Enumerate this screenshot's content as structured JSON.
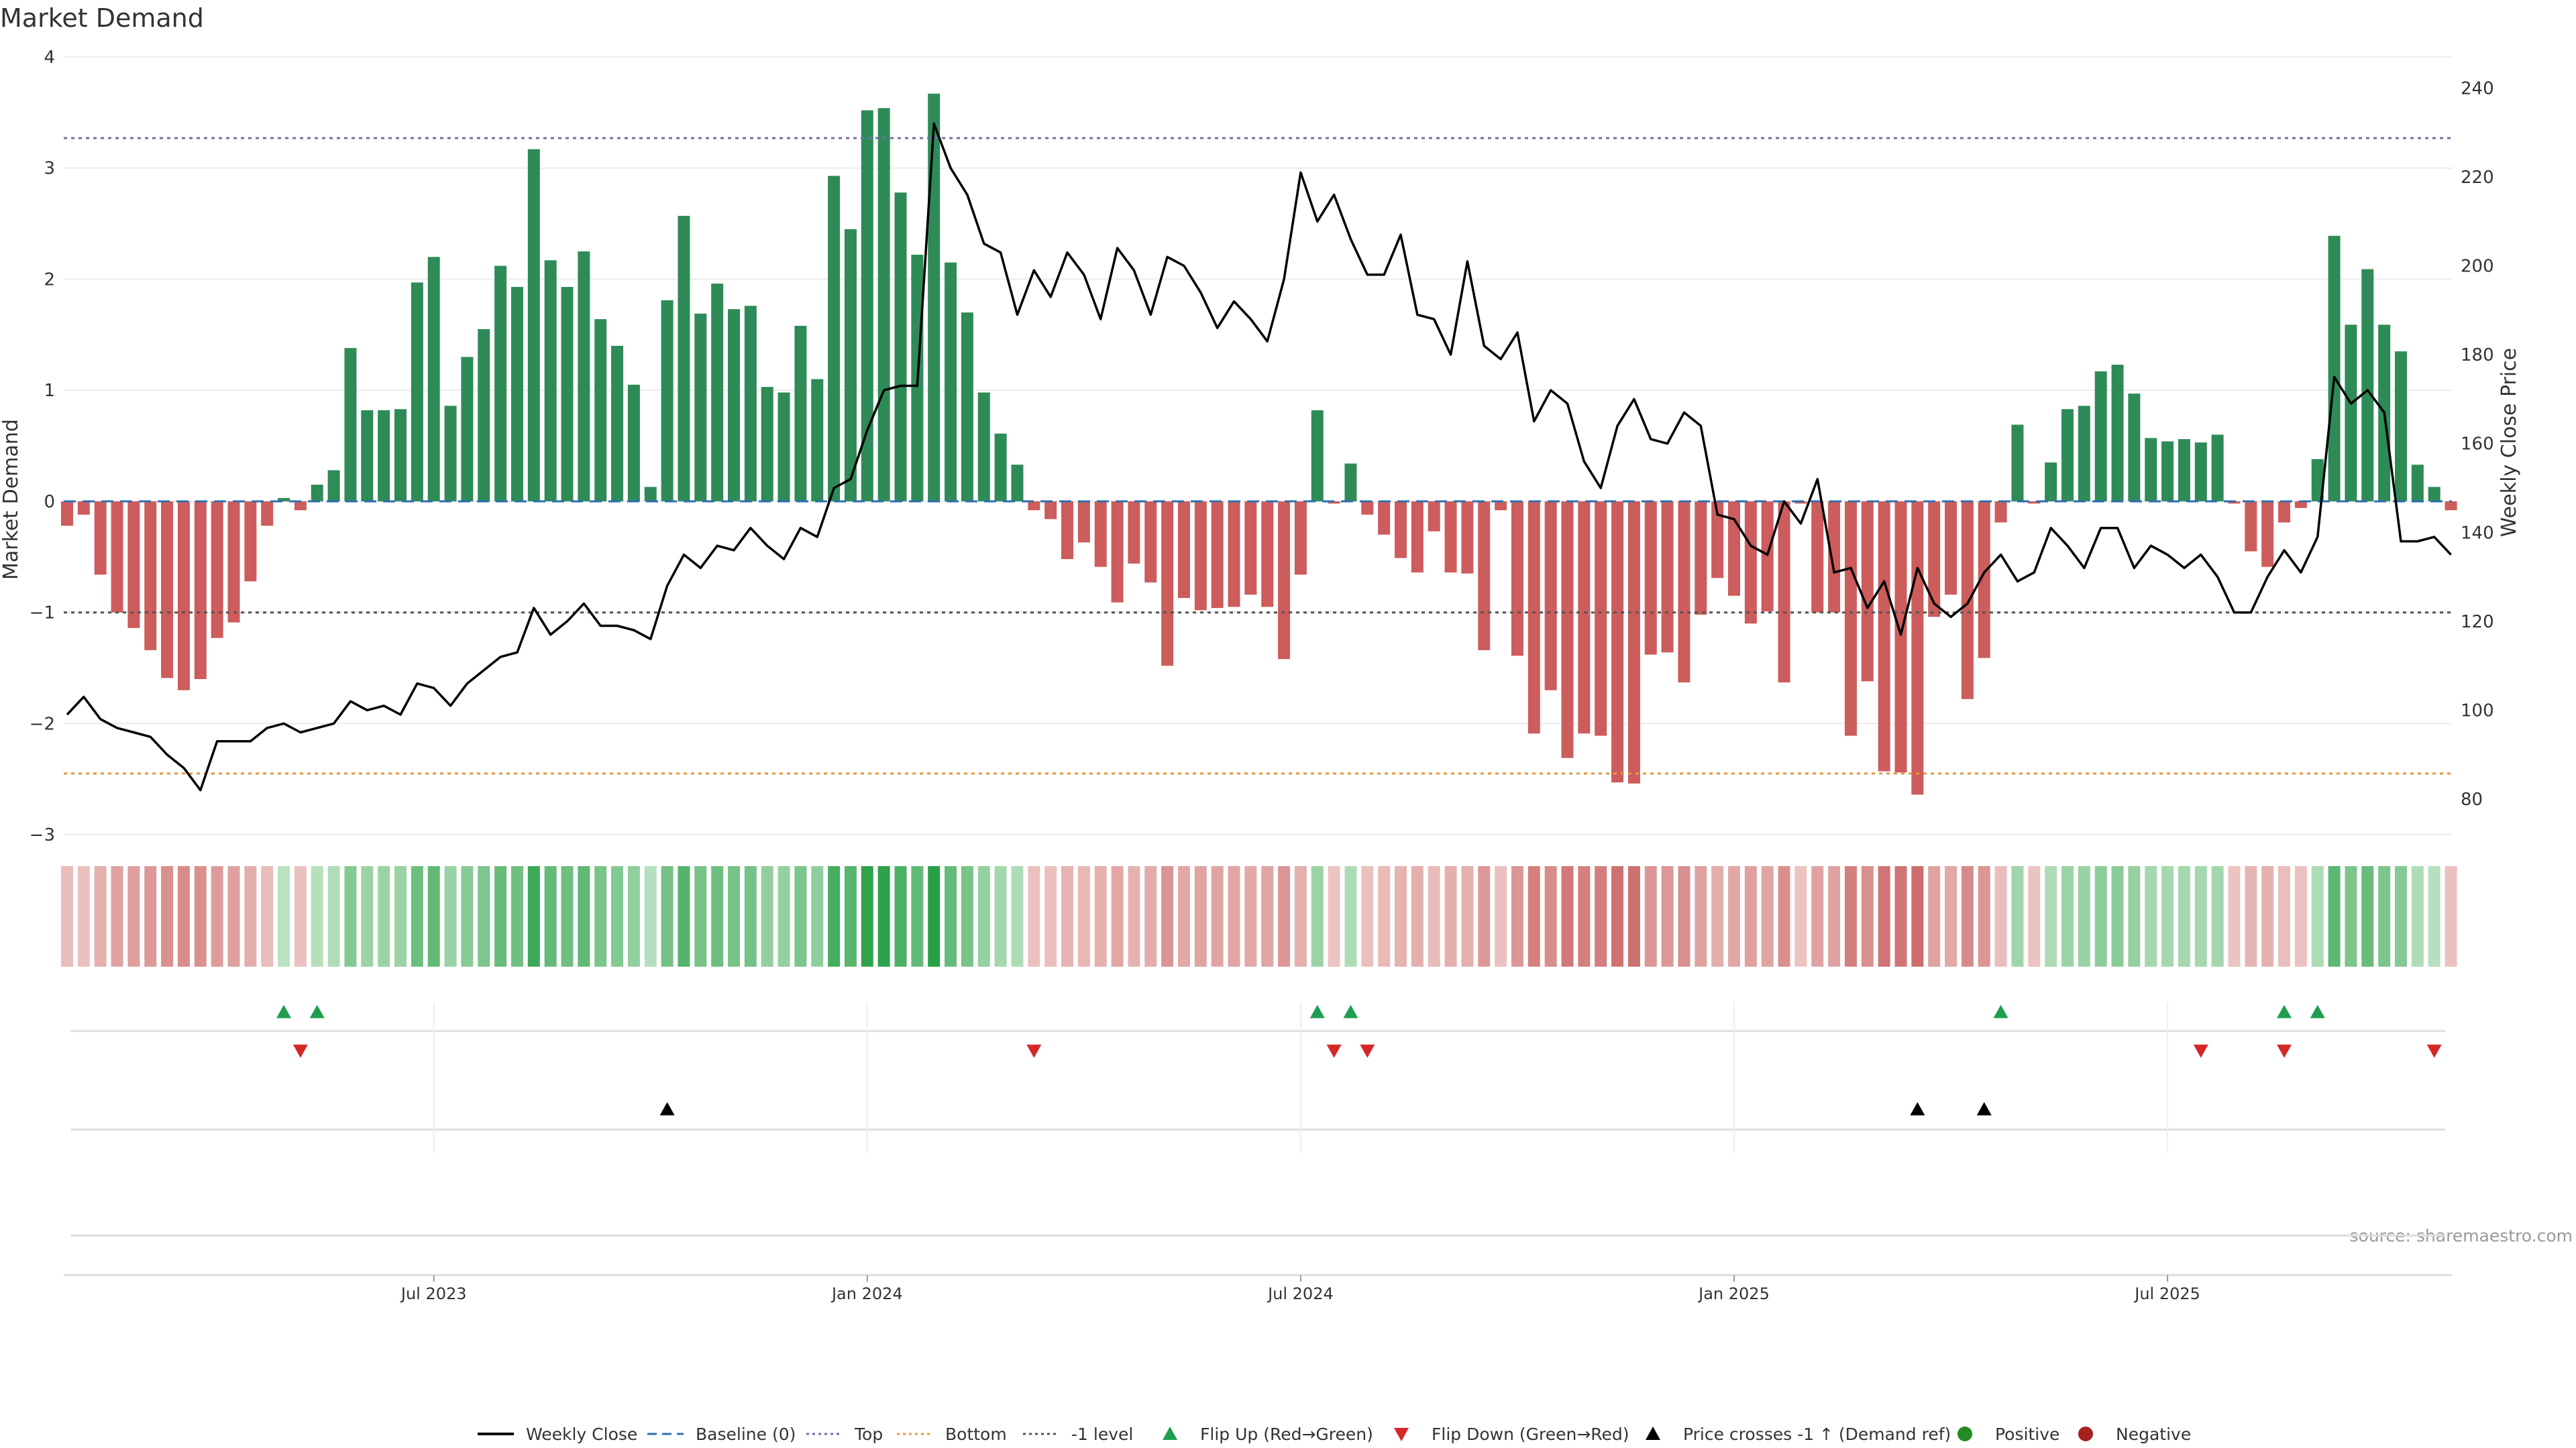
{
  "chart_data": {
    "type": "bar+line",
    "title": "Market Demand",
    "ylabel": "Market Demand",
    "y2label": "Weekly Close Price",
    "source": "source: sharemaestro.com",
    "ylim": [
      -3,
      4
    ],
    "y2lim": [
      72,
      247
    ],
    "yticks": [
      "4",
      "3",
      "2",
      "1",
      "0",
      "−1",
      "−2",
      "−3"
    ],
    "yticks_values": [
      4,
      3,
      2,
      1,
      0,
      -1,
      -2,
      -3
    ],
    "y2ticks": [
      "240",
      "220",
      "200",
      "180",
      "160",
      "140",
      "120",
      "100",
      "80"
    ],
    "y2ticks_values": [
      240,
      220,
      200,
      180,
      160,
      140,
      120,
      100,
      80
    ],
    "xticks": [
      {
        "label": "Jul 2023",
        "week": 22
      },
      {
        "label": "Jan 2024",
        "week": 48
      },
      {
        "label": "Jul 2024",
        "week": 74
      },
      {
        "label": "Jan 2025",
        "week": 100
      },
      {
        "label": "Jul 2025",
        "week": 126
      }
    ],
    "levels": {
      "top": 3.27,
      "bottom": -2.45,
      "minus_one": -1.0,
      "baseline": 0
    },
    "colors": {
      "positive": "#2e8b57",
      "negative": "#cd5c5c",
      "price": "#000000",
      "top": "#6e6ea8",
      "bottom": "#e0983a",
      "minus_one": "#555555",
      "baseline": "#2f6fb0",
      "flip_up": "#1e9e4e",
      "flip_down": "#d62728"
    },
    "demand": [
      -0.22,
      -0.12,
      -0.66,
      -1.0,
      -1.14,
      -1.34,
      -1.59,
      -1.7,
      -1.6,
      -1.23,
      -1.09,
      -0.72,
      -0.22,
      0.03,
      -0.08,
      0.15,
      0.28,
      1.38,
      0.82,
      0.82,
      0.83,
      1.97,
      2.2,
      0.86,
      1.3,
      1.55,
      2.12,
      1.93,
      3.17,
      2.17,
      1.93,
      2.25,
      1.64,
      1.4,
      1.05,
      0.13,
      1.81,
      2.57,
      1.69,
      1.96,
      1.73,
      1.76,
      1.03,
      0.98,
      1.58,
      1.1,
      2.93,
      2.45,
      3.52,
      3.54,
      2.78,
      2.22,
      3.67,
      2.15,
      1.7,
      0.98,
      0.61,
      0.33,
      -0.08,
      -0.16,
      -0.52,
      -0.37,
      -0.59,
      -0.91,
      -0.56,
      -0.73,
      -1.48,
      -0.87,
      -0.98,
      -0.96,
      -0.95,
      -0.84,
      -0.95,
      -1.42,
      -0.66,
      0.82,
      -0.02,
      0.34,
      -0.12,
      -0.3,
      -0.51,
      -0.64,
      -0.27,
      -0.64,
      -0.65,
      -1.34,
      -0.08,
      -1.39,
      -2.09,
      -1.7,
      -2.31,
      -2.09,
      -2.11,
      -2.53,
      -2.54,
      -1.38,
      -1.36,
      -1.63,
      -1.02,
      -0.69,
      -0.85,
      -1.1,
      -0.99,
      -1.63,
      -0.02,
      -1.0,
      -1.0,
      -2.11,
      -1.62,
      -2.43,
      -2.44,
      -2.64,
      -1.04,
      -0.84,
      -1.78,
      -1.41,
      -0.19,
      0.69,
      -0.02,
      0.35,
      0.83,
      0.86,
      1.17,
      1.23,
      0.97,
      0.57,
      0.54,
      0.56,
      0.53,
      0.6,
      -0.02,
      -0.45,
      -0.59,
      -0.19,
      -0.06,
      0.38,
      2.39,
      1.59,
      2.09,
      1.59,
      1.35,
      0.33,
      0.13,
      -0.08
    ],
    "price": [
      99,
      103,
      98,
      96,
      95,
      94,
      90,
      87,
      82,
      93,
      93,
      93,
      96,
      97,
      95,
      96,
      97,
      102,
      100,
      101,
      99,
      106,
      105,
      101,
      106,
      109,
      112,
      113,
      123,
      117,
      120,
      124,
      119,
      119,
      118,
      116,
      128,
      135,
      132,
      137,
      136,
      141,
      137,
      134,
      141,
      139,
      150,
      152,
      163,
      172,
      173,
      173,
      232,
      222,
      216,
      205,
      203,
      189,
      199,
      193,
      203,
      198,
      188,
      204,
      199,
      189,
      202,
      200,
      194,
      186,
      192,
      188,
      183,
      197,
      221,
      210,
      216,
      206,
      198,
      198,
      207,
      189,
      188,
      180,
      201,
      182,
      179,
      185,
      165,
      172,
      169,
      156,
      150,
      164,
      170,
      161,
      160,
      167,
      164,
      144,
      143,
      137,
      135,
      147,
      142,
      152,
      131,
      132,
      123,
      129,
      117,
      132,
      124,
      121,
      124,
      131,
      135,
      129,
      131,
      141,
      137,
      132,
      141,
      141,
      132,
      137,
      135,
      132,
      135,
      130,
      122,
      122,
      130,
      136,
      131,
      139,
      175,
      169,
      172,
      167,
      138,
      138,
      139,
      135
    ],
    "flip_up_weeks": [
      13,
      15,
      75,
      77,
      116,
      133,
      135
    ],
    "flip_down_weeks": [
      14,
      58,
      76,
      78,
      128,
      133,
      142
    ],
    "price_cross_weeks": [
      36,
      111,
      115
    ],
    "legend": [
      {
        "label": "Weekly Close",
        "type": "line"
      },
      {
        "label": "Baseline (0)",
        "type": "dash-blue"
      },
      {
        "label": "Top",
        "type": "dot-purple"
      },
      {
        "label": "Bottom",
        "type": "dot-orange"
      },
      {
        "label": "-1 level",
        "type": "dot-gray"
      },
      {
        "label": "Flip Up (Red→Green)",
        "type": "tri-up-green"
      },
      {
        "label": "Flip Down (Green→Red)",
        "type": "tri-down-red"
      },
      {
        "label": "Price crosses -1 ↑ (Demand ref)",
        "type": "tri-up-black"
      },
      {
        "label": "Positive",
        "type": "dot-green"
      },
      {
        "label": "Negative",
        "type": "dot-red"
      }
    ]
  }
}
